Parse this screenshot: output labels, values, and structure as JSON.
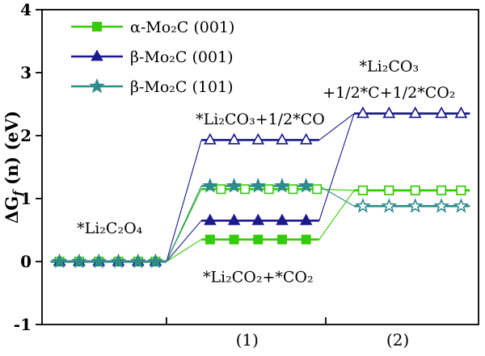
{
  "figure": {
    "background": "#ffffff",
    "axis_color": "#000000"
  },
  "chart_data": {
    "type": "line",
    "title": "",
    "ylabel": "ΔG_f (n) (eV)",
    "ylabel_parts": {
      "main": "ΔG",
      "sub": "f",
      "rest": " (n) (eV)"
    },
    "ylim": [
      -1,
      4
    ],
    "yticks": [
      -1,
      0,
      1,
      2,
      3,
      4
    ],
    "xlim": [
      0,
      10
    ],
    "grid": false,
    "legend_position": "top-left-inside",
    "stage_x_extents": [
      [
        0.2,
        2.85
      ],
      [
        3.65,
        6.35
      ],
      [
        7.15,
        9.8
      ]
    ],
    "stage_marker_x": [
      [
        0.4,
        0.85,
        1.3,
        1.75,
        2.2,
        2.6
      ],
      [
        3.85,
        4.4,
        4.95,
        5.5,
        6.05
      ],
      [
        7.35,
        7.95,
        8.55,
        9.15,
        9.6
      ]
    ],
    "stage_axis_ticks_x": [
      2.85,
      6.5
    ],
    "stage_labels": [
      {
        "text": "(1)",
        "x": 4.7
      },
      {
        "text": "(2)",
        "x": 8.15
      }
    ],
    "legend": [
      {
        "label": "α-Mo₂C (001)",
        "color": "#33cc00",
        "marker": "square"
      },
      {
        "label": "β-Mo₂C (001)",
        "color": "#1a1a8c",
        "marker": "triangle"
      },
      {
        "label": "β-Mo₂C (101)",
        "color": "#2e8b8b",
        "marker": "star"
      }
    ],
    "series": [
      {
        "name": "α-Mo₂C (001) via *Li₂CO₂+*CO₂",
        "color": "#33cc00",
        "marker": "square",
        "variant": "filled",
        "levels": [
          0,
          0.35,
          1.13
        ],
        "marker_dx": 0
      },
      {
        "name": "α-Mo₂C (001) via *Li₂CO₃+1/2*CO",
        "color": "#33cc00",
        "marker": "square",
        "variant": "open",
        "levels": [
          0,
          1.15,
          1.13
        ],
        "marker_dx": 0.25
      },
      {
        "name": "β-Mo₂C (001) via *Li₂CO₂+*CO₂",
        "color": "#1a1a8c",
        "marker": "triangle",
        "variant": "filled",
        "levels": [
          0,
          0.65,
          2.35
        ],
        "marker_dx": 0
      },
      {
        "name": "β-Mo₂C (001) via *Li₂CO₃+1/2*CO",
        "color": "#1a1a8c",
        "marker": "triangle",
        "variant": "open",
        "levels": [
          0,
          1.93,
          2.35
        ],
        "marker_dx": 0
      },
      {
        "name": "β-Mo₂C (101)",
        "color": "#2e8b8b",
        "marker": "star",
        "variant": "filled",
        "levels": [
          0,
          1.2,
          0.88
        ],
        "marker_dx": 0
      }
    ],
    "annotations": [
      {
        "text": "*Li₂C₂O₄",
        "x": 1.55,
        "y": 0.45
      },
      {
        "text": "*Li₂CO₂+*CO₂",
        "x": 4.95,
        "y": -0.33
      },
      {
        "text": "*Li₂CO₃+1/2*CO",
        "x": 5.0,
        "y": 2.18
      },
      {
        "text": "*Li₂CO₃",
        "x": 7.95,
        "y": 3.02
      },
      {
        "text": "+1/2*C+1/2*CO₂",
        "x": 7.95,
        "y": 2.6
      }
    ]
  }
}
